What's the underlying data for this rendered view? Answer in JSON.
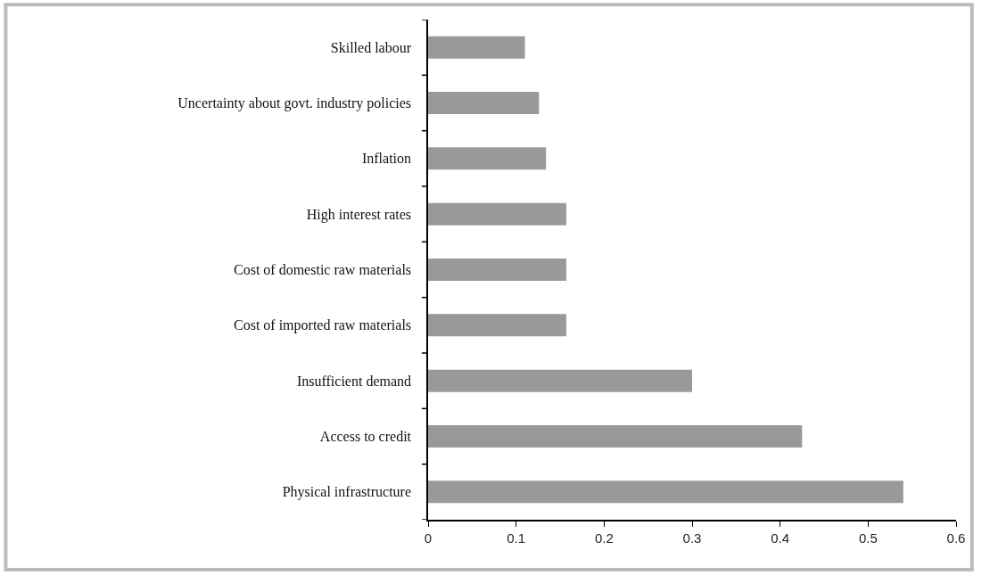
{
  "chart_data": {
    "type": "bar",
    "orientation": "horizontal",
    "categories": [
      "Skilled labour",
      "Uncertainty about govt. industry policies",
      "Inflation",
      "High interest rates",
      "Cost of domestic raw materials",
      "Cost of imported raw materials",
      "Insufficient demand",
      "Access to credit",
      "Physical infrastructure"
    ],
    "values": [
      0.11,
      0.126,
      0.134,
      0.157,
      0.157,
      0.157,
      0.3,
      0.425,
      0.54
    ],
    "color": "#999999",
    "xlim": [
      0,
      0.6
    ],
    "xticks": [
      0,
      0.1,
      0.2,
      0.3,
      0.4,
      0.5,
      0.6
    ]
  }
}
